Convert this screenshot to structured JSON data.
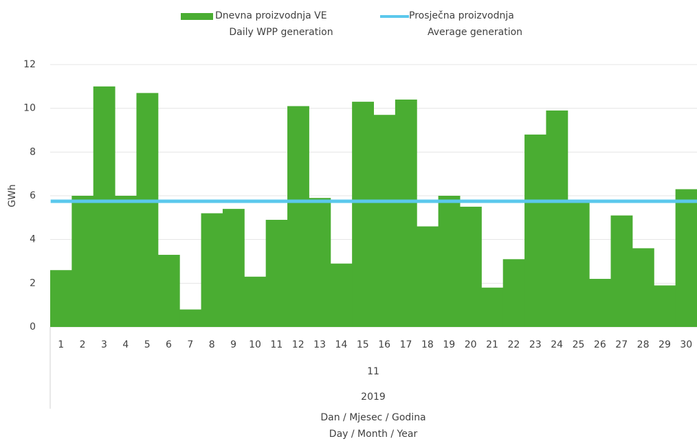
{
  "chart_data": {
    "type": "bar",
    "y_label": "GWh",
    "x_label": [
      "Dan / Mjesec / Godina",
      "Day / Month / Year"
    ],
    "categories": [
      "1",
      "2",
      "3",
      "4",
      "5",
      "6",
      "7",
      "8",
      "9",
      "10",
      "11",
      "12",
      "13",
      "14",
      "15",
      "16",
      "17",
      "18",
      "19",
      "20",
      "21",
      "22",
      "23",
      "24",
      "25",
      "26",
      "27",
      "28",
      "29",
      "30"
    ],
    "category_groups": [
      "11",
      "2019"
    ],
    "series": [
      {
        "name": [
          "Dnevna proizvodnja VE",
          "Daily WPP generation"
        ],
        "type": "bar",
        "color": "#4aad32",
        "values": [
          2.6,
          6.0,
          11.0,
          6.0,
          10.7,
          3.3,
          0.8,
          5.2,
          5.4,
          2.3,
          4.9,
          10.1,
          5.9,
          2.9,
          10.3,
          9.7,
          10.4,
          4.6,
          6.0,
          5.5,
          1.8,
          3.1,
          8.8,
          9.9,
          5.7,
          2.2,
          5.1,
          3.6,
          1.9,
          6.3
        ]
      },
      {
        "name": [
          "Prosječna proizvodnja",
          "Average generation"
        ],
        "type": "line",
        "color": "#5bc8ec",
        "values": [
          5.75,
          5.75,
          5.75,
          5.75,
          5.75,
          5.75,
          5.75,
          5.75,
          5.75,
          5.75,
          5.75,
          5.75,
          5.75,
          5.75,
          5.75,
          5.75,
          5.75,
          5.75,
          5.75,
          5.75,
          5.75,
          5.75,
          5.75,
          5.75,
          5.75,
          5.75,
          5.75,
          5.75,
          5.75,
          5.75
        ]
      }
    ],
    "ylim": [
      0,
      12
    ],
    "yticks": [
      0,
      2,
      4,
      6,
      8,
      10,
      12
    ],
    "grid": true
  }
}
